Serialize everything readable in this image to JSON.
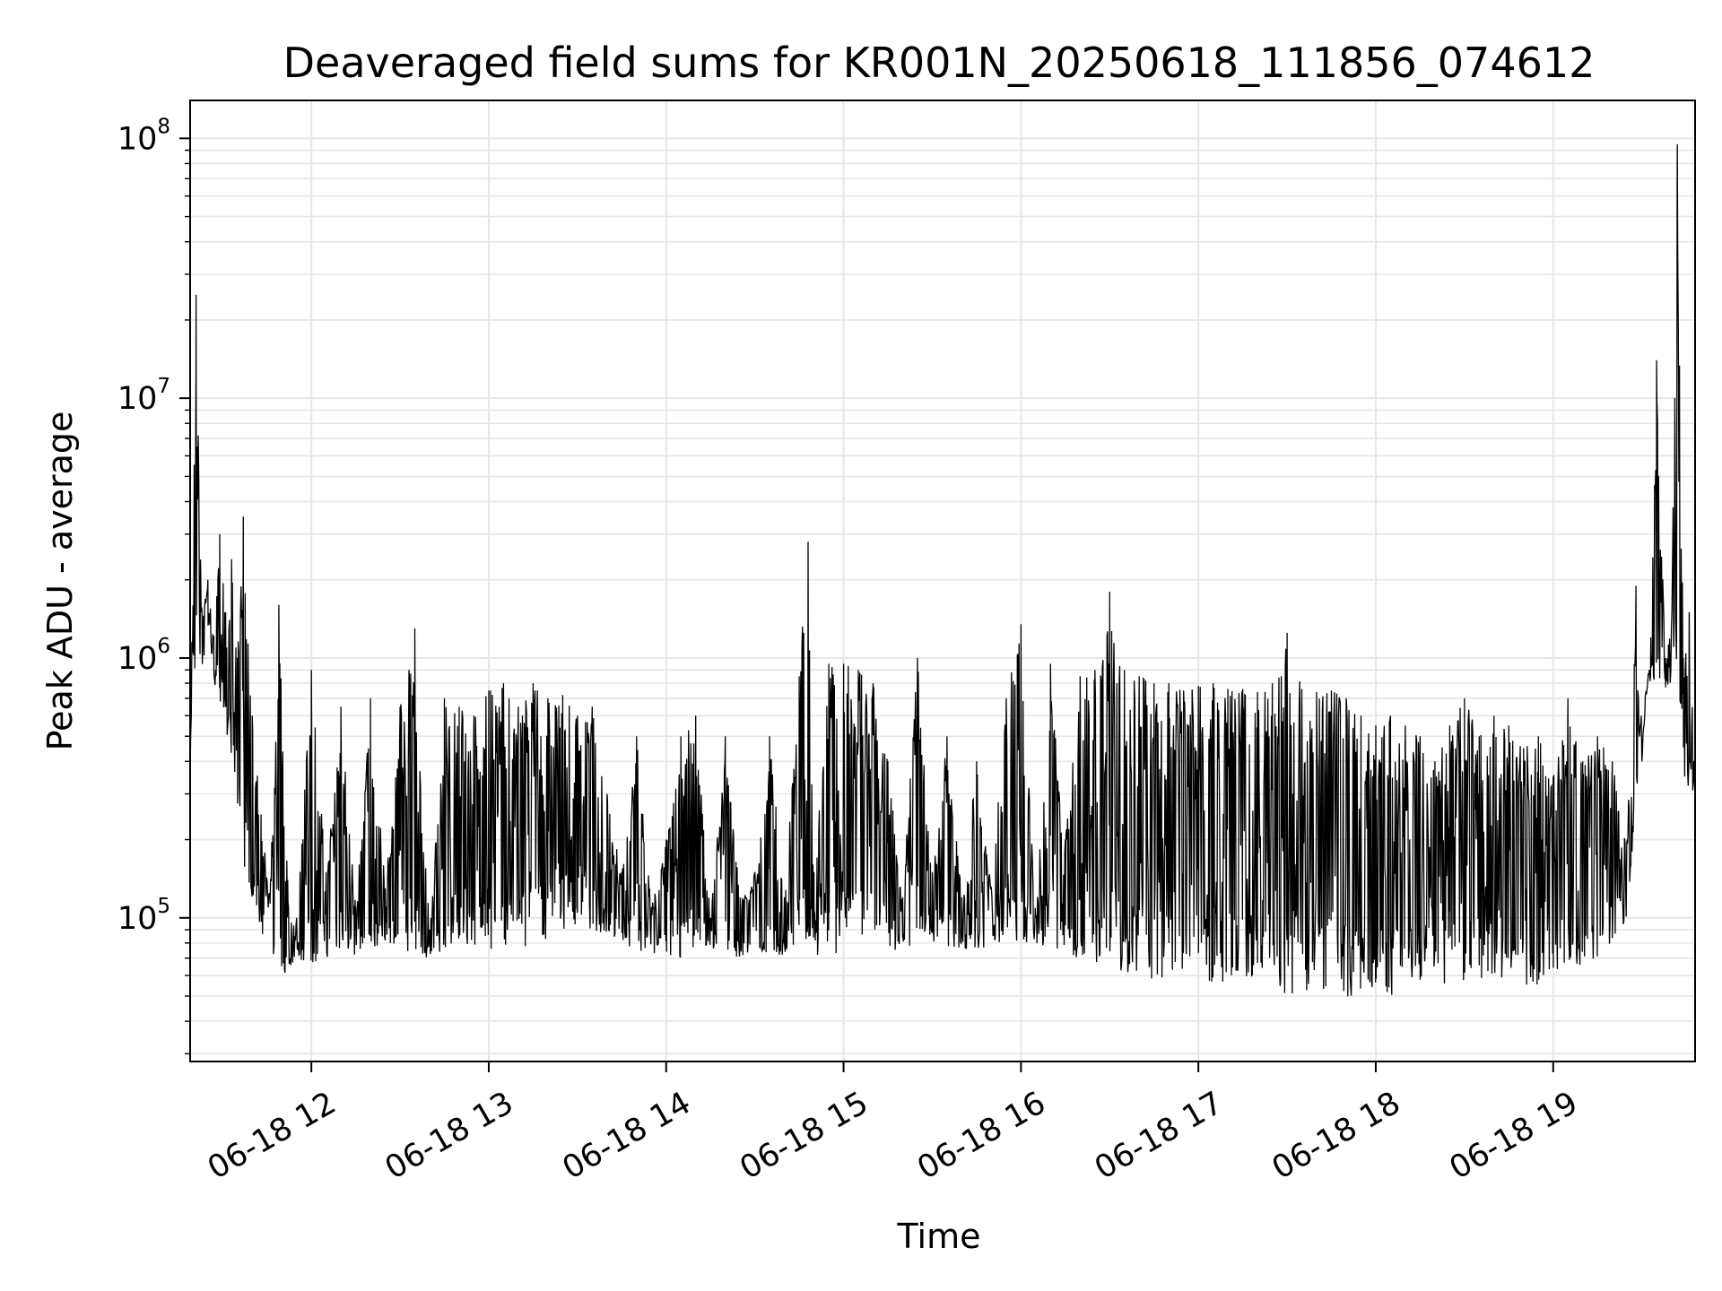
{
  "chart_data": {
    "type": "line",
    "title": "Deaveraged field sums for KR001N_20250618_111856_074612",
    "xlabel": "Time",
    "ylabel": "Peak ADU - average",
    "y_scale": "log",
    "ylim": [
      28000,
      140000000
    ],
    "xlim": [
      "06-18 11:19",
      "06-18 19:48"
    ],
    "grid": "on",
    "line_color": "#000000",
    "grid_color": "#e6e6e6",
    "x_ticks": [
      {
        "label": "06-18 12",
        "value": "06-18 12:00"
      },
      {
        "label": "06-18 13",
        "value": "06-18 13:00"
      },
      {
        "label": "06-18 14",
        "value": "06-18 14:00"
      },
      {
        "label": "06-18 15",
        "value": "06-18 15:00"
      },
      {
        "label": "06-18 16",
        "value": "06-18 16:00"
      },
      {
        "label": "06-18 17",
        "value": "06-18 17:00"
      },
      {
        "label": "06-18 18",
        "value": "06-18 18:00"
      },
      {
        "label": "06-18 19",
        "value": "06-18 19:00"
      }
    ],
    "y_ticks": [
      {
        "base": "10",
        "exp": "5",
        "value": 100000
      },
      {
        "base": "10",
        "exp": "6",
        "value": 1000000
      },
      {
        "base": "10",
        "exp": "7",
        "value": 10000000
      },
      {
        "base": "10",
        "exp": "8",
        "value": 100000000
      }
    ],
    "series": [
      {
        "x": [
          "06-18 11:19",
          "06-18 11:21",
          "06-18 11:23",
          "06-18 11:25",
          "06-18 11:27",
          "06-18 11:29",
          "06-18 11:31",
          "06-18 11:33",
          "06-18 11:35",
          "06-18 11:37",
          "06-18 11:40",
          "06-18 11:43",
          "06-18 11:46",
          "06-18 11:49",
          "06-18 11:52",
          "06-18 11:55",
          "06-18 12:00",
          "06-18 12:05",
          "06-18 12:10",
          "06-18 12:15",
          "06-18 12:20",
          "06-18 12:25",
          "06-18 12:30",
          "06-18 12:35",
          "06-18 12:40",
          "06-18 12:45",
          "06-18 12:50",
          "06-18 12:55",
          "06-18 13:00",
          "06-18 13:05",
          "06-18 13:10",
          "06-18 13:15",
          "06-18 13:20",
          "06-18 13:25",
          "06-18 13:30",
          "06-18 13:35",
          "06-18 13:40",
          "06-18 13:45",
          "06-18 13:50",
          "06-18 13:55",
          "06-18 14:00",
          "06-18 14:05",
          "06-18 14:10",
          "06-18 14:15",
          "06-18 14:20",
          "06-18 14:25",
          "06-18 14:30",
          "06-18 14:35",
          "06-18 14:40",
          "06-18 14:45",
          "06-18 14:48",
          "06-18 14:50",
          "06-18 14:55",
          "06-18 15:00",
          "06-18 15:05",
          "06-18 15:10",
          "06-18 15:15",
          "06-18 15:20",
          "06-18 15:25",
          "06-18 15:30",
          "06-18 15:35",
          "06-18 15:40",
          "06-18 15:45",
          "06-18 15:50",
          "06-18 15:55",
          "06-18 16:00",
          "06-18 16:05",
          "06-18 16:10",
          "06-18 16:15",
          "06-18 16:20",
          "06-18 16:25",
          "06-18 16:30",
          "06-18 16:35",
          "06-18 16:40",
          "06-18 16:45",
          "06-18 16:50",
          "06-18 16:55",
          "06-18 17:00",
          "06-18 17:05",
          "06-18 17:10",
          "06-18 17:15",
          "06-18 17:20",
          "06-18 17:25",
          "06-18 17:30",
          "06-18 17:35",
          "06-18 17:40",
          "06-18 17:45",
          "06-18 17:50",
          "06-18 17:55",
          "06-18 18:00",
          "06-18 18:05",
          "06-18 18:10",
          "06-18 18:15",
          "06-18 18:20",
          "06-18 18:25",
          "06-18 18:30",
          "06-18 18:35",
          "06-18 18:40",
          "06-18 18:45",
          "06-18 18:50",
          "06-18 18:55",
          "06-18 19:00",
          "06-18 19:05",
          "06-18 19:10",
          "06-18 19:15",
          "06-18 19:20",
          "06-18 19:25",
          "06-18 19:28",
          "06-18 19:30",
          "06-18 19:33",
          "06-18 19:35",
          "06-18 19:38",
          "06-18 19:40",
          "06-18 19:42",
          "06-18 19:44",
          "06-18 19:46",
          "06-18 19:48"
        ],
        "y": [
          350000,
          25000000,
          1500000,
          2000000,
          1200000,
          3000000,
          1500000,
          2400000,
          1000000,
          3500000,
          600000,
          250000,
          120000,
          1600000,
          140000,
          100000,
          900000,
          150000,
          650000,
          110000,
          700000,
          130000,
          650000,
          1300000,
          90000,
          700000,
          650000,
          600000,
          750000,
          800000,
          650000,
          800000,
          700000,
          720000,
          600000,
          650000,
          300000,
          150000,
          500000,
          110000,
          200000,
          500000,
          600000,
          100000,
          500000,
          120000,
          150000,
          500000,
          120000,
          850000,
          2800000,
          150000,
          950000,
          950000,
          900000,
          800000,
          400000,
          120000,
          1000000,
          150000,
          500000,
          120000,
          400000,
          130000,
          700000,
          1350000,
          100000,
          950000,
          200000,
          850000,
          900000,
          1800000,
          900000,
          850000,
          800000,
          800000,
          750000,
          780000,
          800000,
          760000,
          760000,
          740000,
          800000,
          1250000,
          760000,
          740000,
          750000,
          700000,
          600000,
          550000,
          600000,
          550000,
          500000,
          400000,
          550000,
          700000,
          500000,
          600000,
          550000,
          450000,
          500000,
          350000,
          700000,
          400000,
          500000,
          400000,
          200000,
          1900000,
          400000,
          1200000,
          14000000,
          1000000,
          1300000,
          95000000,
          1000000,
          1500000,
          300000
        ],
        "floor": [
          350000,
          1000000,
          900000,
          1200000,
          800000,
          700000,
          500000,
          400000,
          250000,
          150000,
          120000,
          90000,
          70000,
          60000,
          60000,
          70000,
          65000,
          70000,
          75000,
          70000,
          75000,
          80000,
          75000,
          70000,
          70000,
          75000,
          80000,
          75000,
          75000,
          70000,
          75000,
          80000,
          80000,
          90000,
          95000,
          90000,
          85000,
          80000,
          75000,
          70000,
          70000,
          70000,
          72000,
          75000,
          72000,
          70000,
          70000,
          72000,
          70000,
          75000,
          75000,
          72000,
          72000,
          72000,
          75000,
          75000,
          75000,
          75000,
          78000,
          80000,
          78000,
          76000,
          75000,
          78000,
          80000,
          80000,
          78000,
          78000,
          72000,
          70000,
          66000,
          64000,
          62000,
          60000,
          58000,
          56000,
          56000,
          54000,
          54000,
          55000,
          56000,
          55000,
          54000,
          50000,
          52000,
          52000,
          50000,
          48000,
          50000,
          50000,
          50000,
          52000,
          54000,
          55000,
          54000,
          56000,
          58000,
          58000,
          60000,
          55000,
          55000,
          60000,
          62000,
          66000,
          70000,
          80000,
          100000,
          250000,
          700000,
          800000,
          800000,
          750000,
          800000,
          700000,
          350000,
          300000,
          300000
        ]
      }
    ]
  }
}
